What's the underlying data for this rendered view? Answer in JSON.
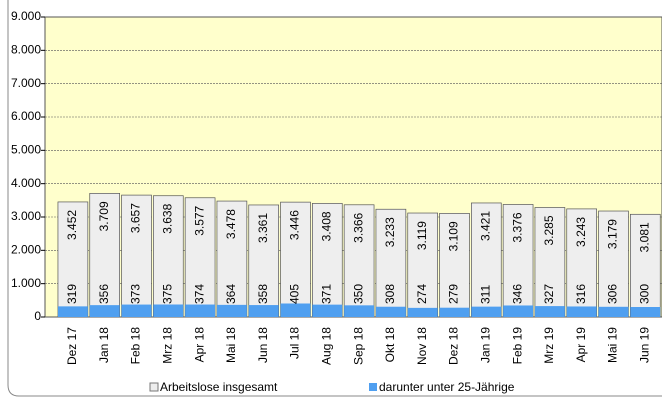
{
  "chart_data": {
    "type": "bar",
    "categories": [
      "Dez 17",
      "Jan 18",
      "Feb 18",
      "Mrz 18",
      "Apr 18",
      "Mai 18",
      "Jun 18",
      "Jul 18",
      "Aug 18",
      "Sep 18",
      "Okt 18",
      "Nov 18",
      "Dez 18",
      "Jan 19",
      "Feb 19",
      "Mrz 19",
      "Apr 19",
      "Mai 19",
      "Jun 19"
    ],
    "series": [
      {
        "name": "Arbeitslose insgesamt",
        "color": "#eeeeee",
        "values": [
          3452,
          3709,
          3657,
          3638,
          3577,
          3478,
          3361,
          3446,
          3408,
          3366,
          3233,
          3119,
          3109,
          3421,
          3376,
          3285,
          3243,
          3179,
          3081
        ],
        "value_labels": [
          "3.452",
          "3.709",
          "3.657",
          "3.638",
          "3.577",
          "3.478",
          "3.361",
          "3.446",
          "3.408",
          "3.366",
          "3.233",
          "3.119",
          "3.109",
          "3.421",
          "3.376",
          "3.285",
          "3.243",
          "3.179",
          "3.081"
        ]
      },
      {
        "name": "darunter unter 25-Jährige",
        "color": "#4f9ff0",
        "values": [
          319,
          356,
          373,
          375,
          374,
          364,
          358,
          405,
          371,
          350,
          308,
          274,
          279,
          311,
          346,
          327,
          316,
          306,
          300
        ]
      }
    ],
    "ylim": [
      0,
      9000
    ],
    "yticks": [
      0,
      {
        "value": 1000,
        "label": "1.000"
      },
      {
        "value": 2000,
        "label": "2.000"
      },
      {
        "value": 3000,
        "label": "3.000"
      },
      {
        "value": 4000,
        "label": "4.000"
      },
      {
        "value": 5000,
        "label": "5.000"
      },
      {
        "value": 6000,
        "label": "6.000"
      },
      {
        "value": 7000,
        "label": "7.000"
      },
      {
        "value": 8000,
        "label": "8.000"
      },
      {
        "value": 9000,
        "label": "9.000"
      }
    ],
    "grid": true
  }
}
